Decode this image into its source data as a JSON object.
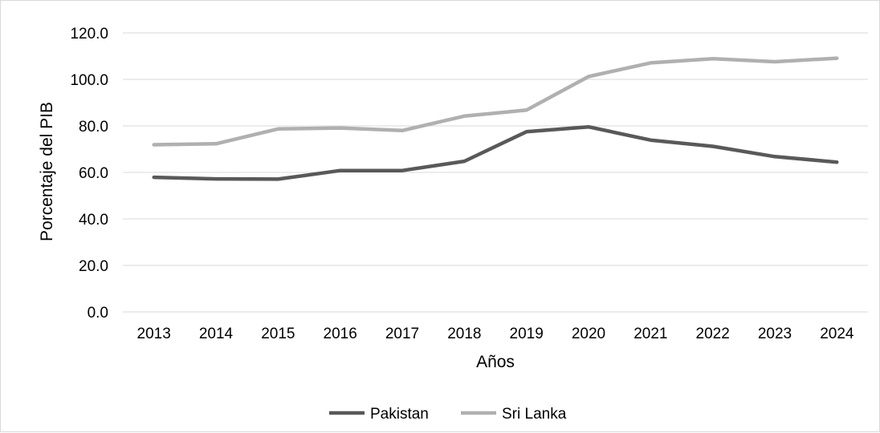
{
  "chart_data": {
    "type": "line",
    "title": "",
    "xlabel": "Años",
    "ylabel": "Porcentaje del PIB",
    "categories": [
      "2013",
      "2014",
      "2015",
      "2016",
      "2017",
      "2018",
      "2019",
      "2020",
      "2021",
      "2022",
      "2023",
      "2024"
    ],
    "ylim": [
      0,
      120
    ],
    "yticks": [
      "0.0",
      "20.0",
      "40.0",
      "60.0",
      "80.0",
      "100.0",
      "120.0"
    ],
    "grid": "horizontal",
    "legend_position": "bottom",
    "series": [
      {
        "name": "Pakistan",
        "color": "#595959",
        "values": [
          57.9,
          57.2,
          57.1,
          60.8,
          60.8,
          64.8,
          77.5,
          79.6,
          73.9,
          71.2,
          66.8,
          64.4
        ]
      },
      {
        "name": "Sri Lanka",
        "color": "#b0b0b0",
        "values": [
          71.9,
          72.3,
          78.7,
          79.1,
          78.0,
          84.2,
          86.8,
          101.2,
          107.1,
          108.9,
          107.6,
          109.1
        ]
      }
    ]
  }
}
